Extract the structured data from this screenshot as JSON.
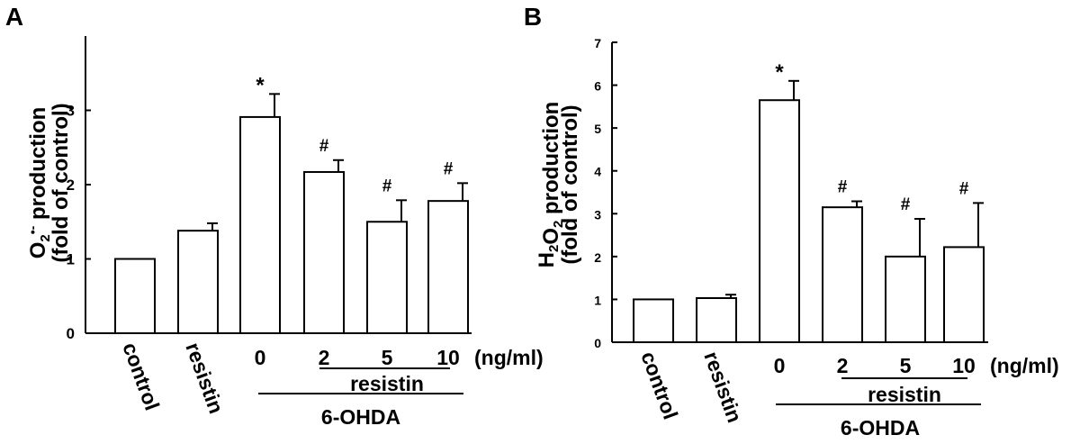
{
  "chart_data": [
    {
      "type": "bar",
      "panel_label": "A",
      "ylabel_lines": [
        {
          "main": "O",
          "sub": "2",
          "sup": "•-",
          "rest": " production"
        },
        {
          "main": "(fold of control)"
        }
      ],
      "ylim": [
        0,
        4
      ],
      "yticks": [
        "0",
        "1",
        "2",
        "3"
      ],
      "categories": [
        "control",
        "resistin",
        "0",
        "2",
        "5",
        "10"
      ],
      "values": [
        1.0,
        1.38,
        2.91,
        2.17,
        1.5,
        1.78
      ],
      "errors": [
        0,
        0.1,
        0.31,
        0.16,
        0.29,
        0.24
      ],
      "significance": [
        "",
        "",
        "*",
        "#",
        "#",
        "#"
      ],
      "unit_label": "(ng/ml)",
      "group_labels": {
        "resistin": "resistin",
        "ohda": "6-OHDA"
      },
      "grid": false
    },
    {
      "type": "bar",
      "panel_label": "B",
      "ylabel_lines": [
        {
          "main": "H",
          "sub": "2",
          "main2": "O",
          "sub2": "2",
          "rest": " production"
        },
        {
          "main": "(fold of control)"
        }
      ],
      "ylim": [
        0,
        7
      ],
      "yticks": [
        "0",
        "1",
        "2",
        "3",
        "4",
        "5",
        "6",
        "7"
      ],
      "categories": [
        "control",
        "resistin",
        "0",
        "2",
        "5",
        "10"
      ],
      "values": [
        1.0,
        1.03,
        5.65,
        3.15,
        2.0,
        2.22
      ],
      "errors": [
        0,
        0.08,
        0.45,
        0.14,
        0.88,
        1.03
      ],
      "significance": [
        "",
        "",
        "*",
        "#",
        "#",
        "#"
      ],
      "unit_label": "(ng/ml)",
      "group_labels": {
        "resistin": "resistin",
        "ohda": "6-OHDA"
      },
      "grid": false
    }
  ]
}
